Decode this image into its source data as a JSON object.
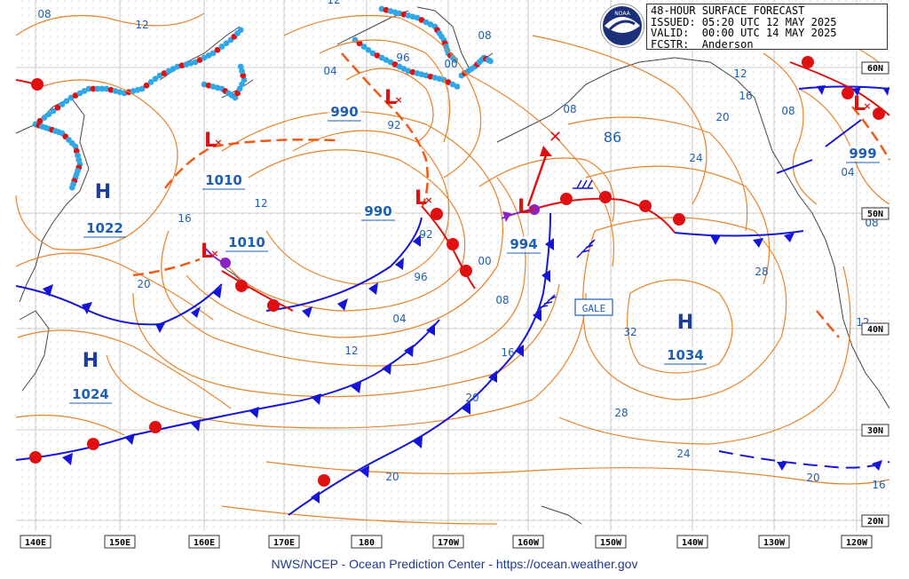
{
  "header": {
    "title": "48-HOUR SURFACE FORECAST",
    "issued": "ISSUED: 05:20 UTC 12 MAY 2025",
    "valid": "VALID:  00:00 UTC 14 MAY 2025",
    "forecaster": "FCSTR:  Anderson"
  },
  "logo_text": "NOAA",
  "footer": "NWS/NCEP - Ocean Prediction Center - https://ocean.weather.gov",
  "longitude_labels": [
    "140E",
    "150E",
    "160E",
    "170E",
    "180",
    "170W",
    "160W",
    "150W",
    "140W",
    "130W",
    "120W"
  ],
  "latitude_labels": [
    "60N",
    "50N",
    "40N",
    "30N",
    "20N"
  ],
  "pressure_systems": [
    {
      "type": "H",
      "pressure": "1022"
    },
    {
      "type": "H",
      "pressure": "1024"
    },
    {
      "type": "L",
      "pressure": "1010"
    },
    {
      "type": "L",
      "pressure": "1010"
    },
    {
      "type": "L",
      "pressure": "990"
    },
    {
      "type": "L",
      "pressure": "990"
    },
    {
      "type": "L",
      "pressure": "994"
    },
    {
      "type": "H",
      "pressure": "1034"
    },
    {
      "type": "L",
      "pressure": "999"
    }
  ],
  "isobar_labels": [
    "08",
    "12",
    "04",
    "96",
    "00",
    "08",
    "92",
    "12",
    "16",
    "12",
    "20",
    "92",
    "96",
    "00",
    "08",
    "04",
    "12",
    "16",
    "20",
    "20",
    "16",
    "08",
    "24",
    "86",
    "28",
    "32",
    "28",
    "24",
    "20",
    "16",
    "12",
    "08",
    "04",
    "08",
    "12",
    "20",
    "16"
  ],
  "warnings": [
    "GALE"
  ],
  "colors": {
    "isobar": "#e8832a",
    "cold_front": "#1515d8",
    "warm_front": "#e01010",
    "occluded_front": "#8a22c8",
    "trough": "#f05a14",
    "ice_edge_dots": "#30a8e8",
    "coast": "#444444",
    "grid": "#bdbdbd",
    "label_blue": "#1c5fb3"
  }
}
